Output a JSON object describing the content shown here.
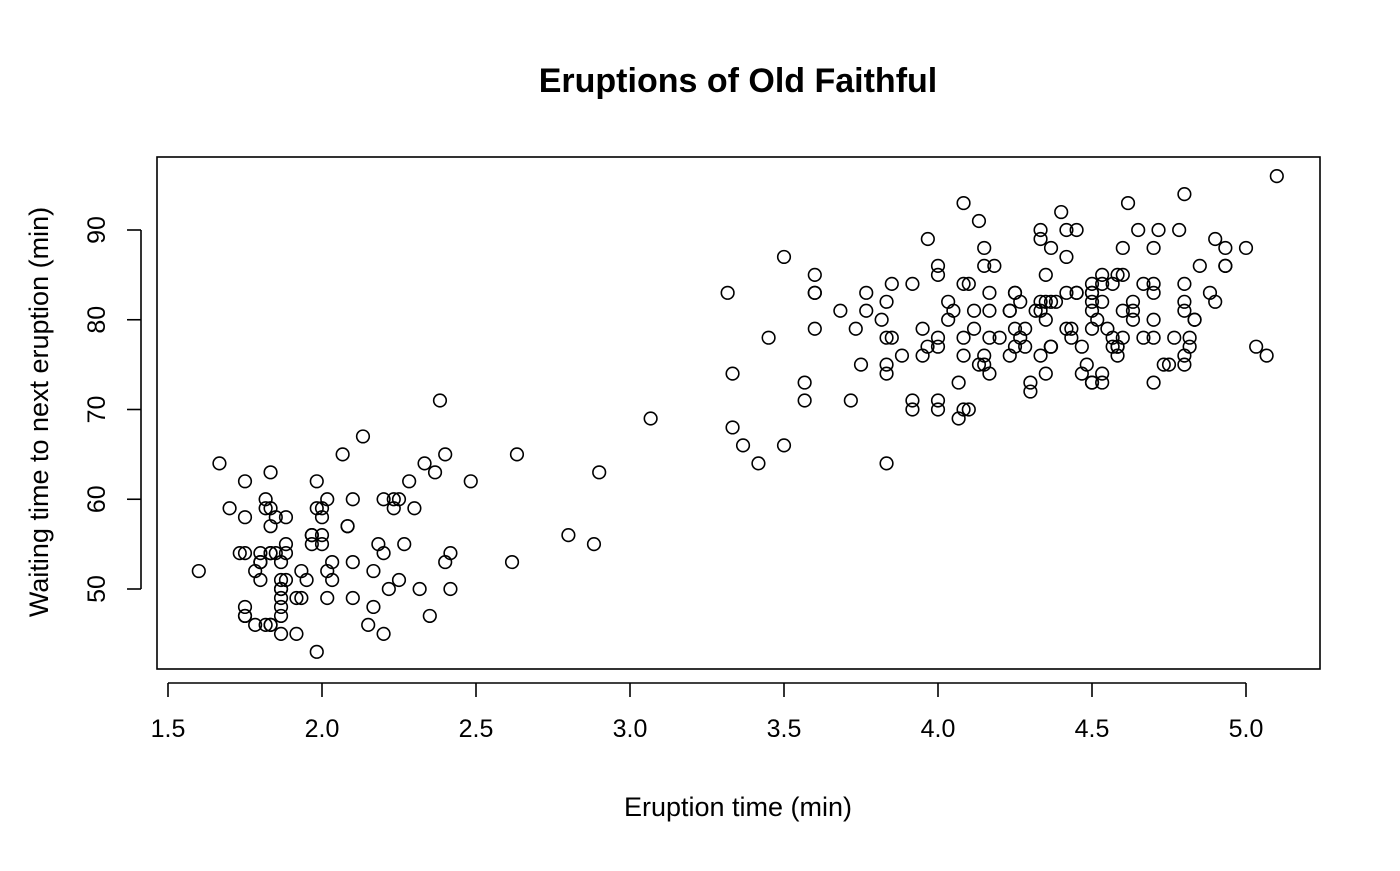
{
  "chart_data": {
    "type": "scatter",
    "title": "Eruptions of Old Faithful",
    "xlabel": "Eruption time (min)",
    "ylabel": "Waiting time to next eruption (min)",
    "xlim": [
      1.6,
      5.1
    ],
    "ylim": [
      43,
      96
    ],
    "xticks": [
      "1.5",
      "2.0",
      "2.5",
      "3.0",
      "3.5",
      "4.0",
      "4.5",
      "5.0"
    ],
    "yticks": [
      "50",
      "60",
      "70",
      "80",
      "90"
    ],
    "grid": false,
    "legend": "none",
    "marker": "open circle",
    "point_color": "#000000",
    "series": [
      {
        "x": [
          3.6,
          1.8,
          3.333,
          2.283,
          4.533,
          2.883,
          4.7,
          3.6,
          1.95,
          4.35,
          1.833,
          3.917,
          4.2,
          1.75,
          4.7,
          2.167,
          1.75,
          4.8,
          1.6,
          4.25,
          1.8,
          1.75,
          3.45,
          3.067,
          4.533,
          3.6,
          1.967,
          4.083,
          3.85,
          4.433,
          4.3,
          4.467,
          3.367,
          4.033,
          3.833,
          2.017,
          1.867,
          4.833,
          1.833,
          4.783,
          4.35,
          1.883,
          4.567,
          1.75,
          4.533,
          3.317,
          3.833,
          2.1,
          4.633,
          2,
          4.8,
          4.716,
          1.833,
          4.833,
          1.733,
          4.883,
          3.717,
          1.667,
          4.567,
          4.317,
          2.233,
          4.5,
          1.75,
          4.8,
          1.817,
          4.4,
          4.167,
          4.7,
          2.067,
          4.7,
          4.033,
          1.967,
          4.5,
          4,
          1.983,
          5.067,
          2.017,
          4.567,
          3.883,
          3.6,
          4.133,
          4.333,
          4.1,
          2.633,
          4.067,
          4.933,
          3.95,
          4.517,
          2.167,
          4,
          2.2,
          4.333,
          1.867,
          4.817,
          1.833,
          4.3,
          4.667,
          3.75,
          1.867,
          4.9,
          2.483,
          4.367,
          2.1,
          4.5,
          4.05,
          1.867,
          4.7,
          1.783,
          4.85,
          3.683,
          4.733,
          2.3,
          4.9,
          4.417,
          1.7,
          4.633,
          2.317,
          4.6,
          1.817,
          4.417,
          2.617,
          4.067,
          4.25,
          1.967,
          4.6,
          3.767,
          1.917,
          4.5,
          2.267,
          4.65,
          1.867,
          4.167,
          2.8,
          4.333,
          1.833,
          4.383,
          1.883,
          4.933,
          2.033,
          3.733,
          4.233,
          2.233,
          4.533,
          4.817,
          4.333,
          1.983,
          4.633,
          2.017,
          5.1,
          1.8,
          5.033,
          4,
          2.4,
          4.6,
          3.567,
          4,
          4.5,
          4.083,
          1.8,
          3.967,
          2.2,
          4.15,
          2,
          3.833,
          3.5,
          4.583,
          2.367,
          5,
          1.933,
          4.617,
          1.917,
          2.083,
          4.583,
          3.333,
          4.167,
          4.333,
          4.5,
          2.417,
          4,
          4.167,
          1.883,
          4.583,
          4.25,
          3.767,
          2.033,
          4.433,
          4.083,
          1.833,
          4.417,
          2.183,
          4.8,
          1.833,
          4.8,
          4.1,
          3.966,
          4.233,
          3.5,
          4.366,
          2.25,
          4.667,
          2.1,
          4.35,
          4.133,
          1.867,
          4.6,
          1.783,
          4.367,
          3.85,
          1.933,
          4.5,
          2.383,
          4.7,
          1.867,
          3.833,
          3.417,
          4.233,
          2.4,
          4.8,
          2,
          4.15,
          1.867,
          4.267,
          1.75,
          4.483,
          4,
          4.117,
          4.083,
          4.267,
          3.917,
          4.55,
          4.083,
          2.417,
          4.183,
          2.217,
          4.45,
          1.883,
          1.85,
          4.283,
          3.95,
          2.333,
          4.15,
          2.35,
          4.933,
          2.9,
          4.583,
          3.833,
          2.083,
          4.367,
          2.133,
          4.35,
          2.2,
          4.45,
          3.567,
          4.5,
          4.15,
          3.817,
          3.917,
          4.45,
          2,
          4.283,
          4.767,
          4.533,
          1.85,
          4.25,
          1.983,
          2.25,
          4.75,
          4.117,
          2.15,
          4.417,
          1.817,
          4.467
        ],
        "y": [
          79,
          54,
          74,
          62,
          85,
          55,
          88,
          85,
          51,
          85,
          54,
          84,
          78,
          47,
          83,
          52,
          62,
          84,
          52,
          79,
          51,
          47,
          78,
          69,
          74,
          83,
          55,
          76,
          78,
          79,
          73,
          77,
          66,
          80,
          74,
          52,
          48,
          80,
          59,
          90,
          80,
          58,
          84,
          58,
          73,
          83,
          64,
          53,
          82,
          59,
          75,
          90,
          54,
          80,
          54,
          83,
          71,
          64,
          77,
          81,
          59,
          84,
          48,
          82,
          60,
          92,
          78,
          78,
          65,
          73,
          82,
          56,
          79,
          71,
          62,
          76,
          60,
          78,
          76,
          83,
          75,
          82,
          70,
          65,
          73,
          88,
          76,
          80,
          48,
          86,
          60,
          90,
          50,
          78,
          63,
          72,
          84,
          75,
          51,
          82,
          62,
          88,
          49,
          83,
          81,
          47,
          84,
          52,
          86,
          81,
          75,
          59,
          89,
          79,
          59,
          81,
          50,
          85,
          59,
          87,
          53,
          69,
          77,
          56,
          88,
          81,
          45,
          82,
          55,
          90,
          45,
          83,
          56,
          89,
          46,
          82,
          51,
          86,
          53,
          79,
          81,
          60,
          82,
          77,
          76,
          59,
          80,
          49,
          96,
          53,
          77,
          77,
          65,
          81,
          71,
          70,
          81,
          93,
          53,
          89,
          45,
          86,
          58,
          78,
          66,
          76,
          63,
          88,
          52,
          93,
          49,
          57,
          77,
          68,
          81,
          81,
          73,
          50,
          85,
          74,
          55,
          77,
          83,
          83,
          51,
          78,
          84,
          46,
          83,
          55,
          81,
          57,
          76,
          84,
          77,
          81,
          87,
          77,
          51,
          78,
          60,
          82,
          91,
          53,
          78,
          46,
          77,
          84,
          49,
          83,
          71,
          80,
          49,
          75,
          64,
          76,
          53,
          94,
          55,
          76,
          50,
          82,
          54,
          75,
          78,
          79,
          78,
          78,
          70,
          79,
          70,
          54,
          86,
          50,
          90,
          54,
          54,
          77,
          79,
          64,
          75,
          47,
          86,
          63,
          85,
          82,
          57,
          82,
          67,
          74,
          54,
          83,
          73,
          73,
          88,
          80,
          71,
          83,
          56,
          79,
          78,
          84,
          58,
          83,
          43,
          60,
          75,
          81,
          46,
          90,
          46,
          74
        ]
      }
    ]
  }
}
